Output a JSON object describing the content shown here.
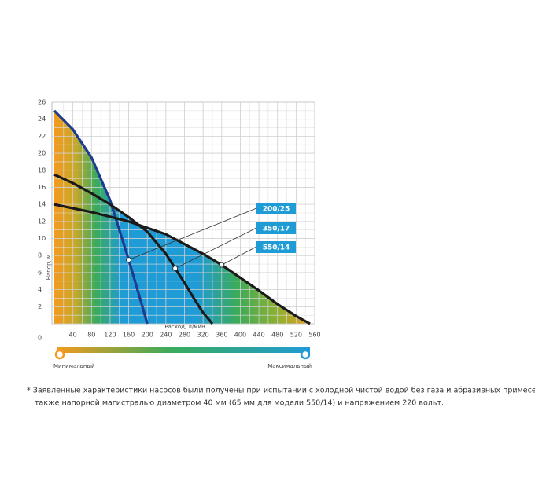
{
  "chart_data": {
    "type": "line",
    "x_label": "Расход, л/мин",
    "y_label": "Напор, м",
    "xlim": [
      0,
      560
    ],
    "ylim": [
      0,
      26
    ],
    "xticks": [
      40,
      80,
      120,
      160,
      200,
      240,
      280,
      320,
      360,
      400,
      440,
      480,
      520,
      560
    ],
    "yticks": [
      0,
      2,
      4,
      6,
      8,
      10,
      12,
      14,
      16,
      18,
      20,
      22,
      24,
      26
    ],
    "grid": true,
    "series": [
      {
        "name": "200/25",
        "color": "#1d3b8f",
        "x": [
          0,
          40,
          80,
          120,
          140,
          160,
          180,
          200
        ],
        "values": [
          25,
          22.8,
          19.5,
          14.5,
          11,
          7.5,
          3.8,
          0
        ]
      },
      {
        "name": "350/17",
        "color": "#1a1a1a",
        "x": [
          0,
          40,
          80,
          120,
          160,
          200,
          240,
          260,
          280,
          300,
          320,
          340
        ],
        "values": [
          17.5,
          16.5,
          15.3,
          14,
          12.5,
          10.8,
          8.2,
          6.5,
          4.8,
          3,
          1.3,
          0
        ]
      },
      {
        "name": "550/14",
        "color": "#1a1a1a",
        "x": [
          0,
          80,
          160,
          240,
          320,
          360,
          400,
          440,
          480,
          520,
          550
        ],
        "values": [
          14,
          13.1,
          12,
          10.5,
          8.2,
          6.9,
          5.4,
          3.9,
          2.3,
          0.9,
          0
        ]
      }
    ],
    "scale_min_label": "Минимальный",
    "scale_max_label": "Максимальный",
    "footnote_line1": "* Заявленные характеристики насосов были получены при испытании с холодной чистой водой без газа и абразивных примесей, а",
    "footnote_line2": "также напорной магистралью диаметром 40 мм (65 мм для модели 550/14) и напряжением 220 вольт."
  }
}
